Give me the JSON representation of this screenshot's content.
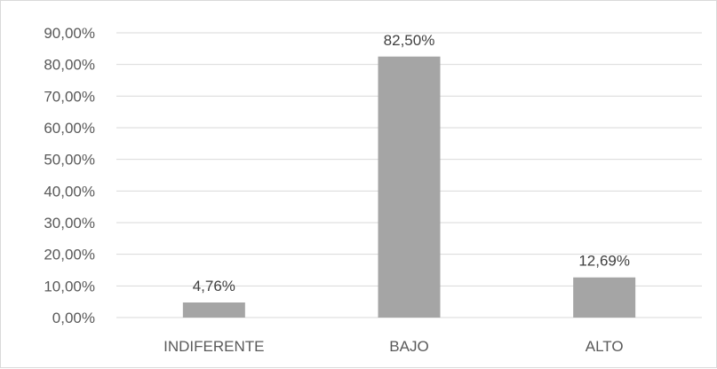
{
  "chart_data": {
    "type": "bar",
    "categories": [
      "INDIFERENTE",
      "BAJO",
      "ALTO"
    ],
    "values": [
      4.76,
      82.5,
      12.69
    ],
    "data_labels": [
      "4,76%",
      "82,50%",
      "12,69%"
    ],
    "y_ticks": [
      "0,00%",
      "10,00%",
      "20,00%",
      "30,00%",
      "40,00%",
      "50,00%",
      "60,00%",
      "70,00%",
      "80,00%",
      "90,00%"
    ],
    "ylim": [
      0,
      90
    ],
    "grid": true,
    "legend": "none",
    "colors": {
      "bar": "#a5a5a5",
      "grid": "#d9d9d9",
      "text": "#595959"
    }
  }
}
